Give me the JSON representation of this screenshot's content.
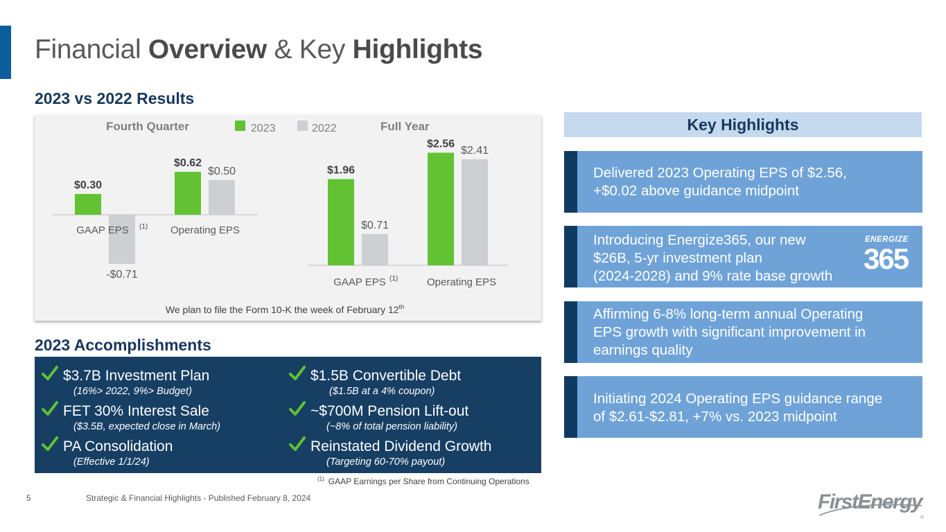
{
  "title": {
    "part1": "Financial ",
    "part2": "Overview",
    "part3": " & Key ",
    "part4": "Highlights"
  },
  "results_heading": "2023 vs 2022 Results",
  "chart_data": {
    "type": "bar",
    "legend": [
      "2023",
      "2022"
    ],
    "colors": {
      "2023": "#62c233",
      "2022": "#cdcfd3"
    },
    "panels": [
      {
        "title": "Fourth Quarter",
        "categories": [
          "GAAP EPS",
          "Operating EPS"
        ],
        "category_notes": [
          "(1)",
          ""
        ],
        "series": [
          {
            "name": "2023",
            "values": [
              0.3,
              0.62
            ],
            "labels": [
              "$0.30",
              "$0.62"
            ]
          },
          {
            "name": "2022",
            "values": [
              -0.71,
              0.5
            ],
            "labels": [
              "-$0.71",
              "$0.50"
            ]
          }
        ]
      },
      {
        "title": "Full Year",
        "categories": [
          "GAAP EPS",
          "Operating EPS"
        ],
        "category_notes": [
          "(1)",
          ""
        ],
        "series": [
          {
            "name": "2023",
            "values": [
              1.96,
              2.56
            ],
            "labels": [
              "$1.96",
              "$2.56"
            ]
          },
          {
            "name": "2022",
            "values": [
              0.71,
              2.41
            ],
            "labels": [
              "$0.71",
              "$2.41"
            ]
          }
        ]
      }
    ],
    "note": "We plan to file the Form 10-K the week of February 12",
    "note_sup": "th"
  },
  "accomplishments_heading": "2023 Accomplishments",
  "accomplishments": [
    {
      "main": "$3.7B Investment Plan",
      "sub": "(16%> 2022, 9%> Budget)"
    },
    {
      "main": "FET 30% Interest Sale",
      "sub": "($3.5B, expected close in March)"
    },
    {
      "main": "PA Consolidation",
      "sub": "(Effective 1/1/24)"
    },
    {
      "main": "$1.5B Convertible Debt",
      "sub": "($1.5B at a 4% coupon)"
    },
    {
      "main": "~$700M Pension Lift-out",
      "sub": "(~8% of total pension liability)"
    },
    {
      "main": "Reinstated Dividend Growth",
      "sub": "(Targeting 60-70% payout)"
    }
  ],
  "footnote": {
    "marker": "(1)",
    "text": "GAAP Earnings per Share from Continuing Operations"
  },
  "key_highlights": {
    "title": "Key Highlights",
    "items": [
      "Delivered 2023 Operating EPS of $2.56,\n+$0.02 above guidance midpoint",
      "Introducing Energize365, our new\n$26B, 5-yr investment plan\n(2024-2028) and 9% rate base growth",
      "Affirming 6-8% long-term annual Operating\nEPS growth with significant improvement in\nearnings quality",
      "Initiating 2024 Operating EPS guidance range\nof $2.61-$2.81, +7% vs. 2023 midpoint"
    ],
    "energize_logo": {
      "word": "ENERGIZE",
      "number": "365"
    }
  },
  "footer": {
    "page_number": "5",
    "text": "Strategic & Financial Highlights - Published February 8, 2024",
    "logo_text": "FirstEnergy",
    "logo_mark": "®"
  }
}
